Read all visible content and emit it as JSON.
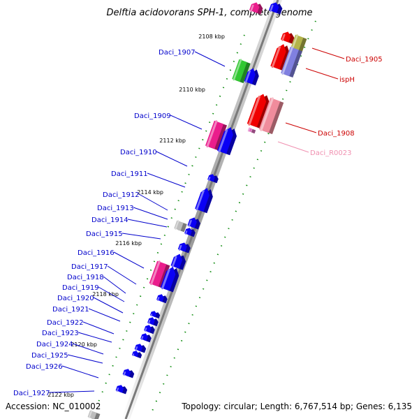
{
  "title": "Delftia acidovorans SPH-1, complete genome",
  "accession": "Accession: NC_010002",
  "summary": "Topology: circular; Length: 6,767,514 bp; Genes: 6,135",
  "colors": {
    "cds": "#0a00f5",
    "pink": "#ea1d8c",
    "green": "#32c832",
    "grey": "#bdbdbd",
    "red": "#f00000",
    "olive": "#b4b44a",
    "lavender": "#8080e0",
    "rna": "#f08c9c",
    "tick": "#008000"
  },
  "kbp_marks": [
    "2108 kbp",
    "2110 kbp",
    "2112 kbp",
    "2114 kbp",
    "2116 kbp",
    "2118 kbp",
    "2120 kbp",
    "2122 kbp"
  ],
  "left_genes": [
    "Daci_1907",
    "Daci_1909",
    "Daci_1910",
    "Daci_1911",
    "Daci_1912",
    "Daci_1913",
    "Daci_1914",
    "Daci_1915",
    "Daci_1916",
    "Daci_1917",
    "Daci_1918",
    "Daci_1919",
    "Daci_1920",
    "Daci_1921",
    "Daci_1922",
    "Daci_1923",
    "Daci_1924",
    "Daci_1925",
    "Daci_1926",
    "Daci_1927"
  ],
  "right_genes": [
    "Daci_1905",
    "ispH",
    "Daci_1908",
    "Daci_R0023"
  ]
}
